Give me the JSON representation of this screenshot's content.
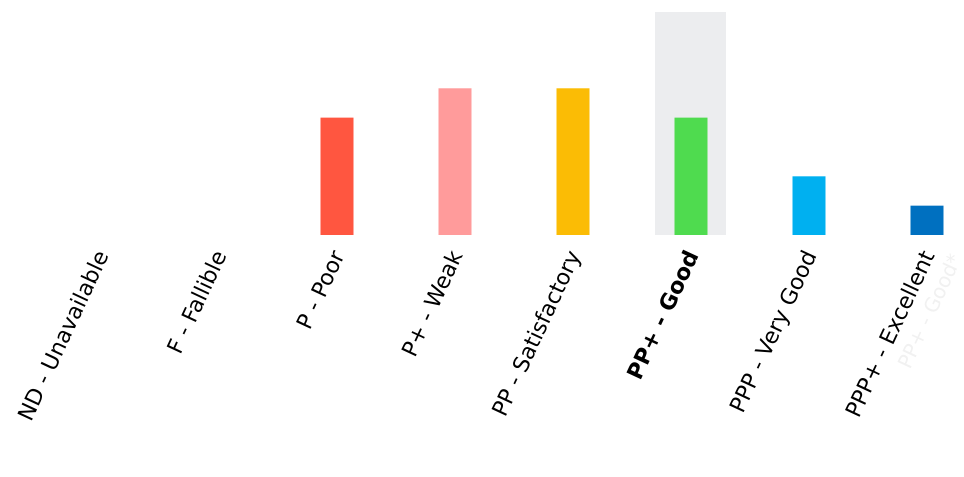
{
  "chart_data": {
    "type": "bar",
    "categories": [
      "ND - Unavailable",
      "F - Fallible",
      "P - Poor",
      "P+ - Weak",
      "PP - Satisfactory",
      "PP+ - Good",
      "PPP - Very Good",
      "PPP+ - Excellent"
    ],
    "values": [
      0,
      0,
      4,
      5,
      5,
      4,
      2,
      1
    ],
    "colors": [
      "#cccccc",
      "#cccccc",
      "#ff5640",
      "#ff9b9b",
      "#fbbc05",
      "#4fdb4f",
      "#00b0f0",
      "#0070c0"
    ],
    "ylim": [
      0,
      7.6
    ],
    "highlight": 5,
    "annotation": "PP+ - Good*"
  }
}
